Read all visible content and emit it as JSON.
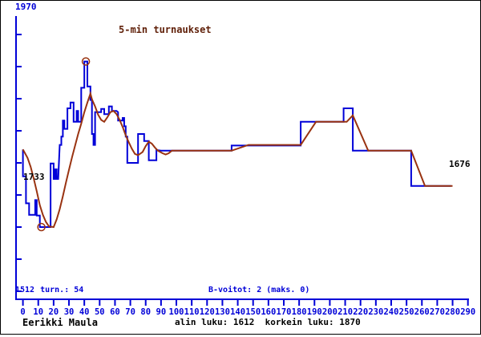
{
  "window": {
    "background": "#ffffff",
    "border_color": "#000000"
  },
  "colors": {
    "blue": "#0000d8",
    "brown": "#993311",
    "title": "#5f1f08",
    "black": "#000000"
  },
  "labels": {
    "y_max": "1970",
    "y_min": "1512",
    "title": "5-min turnaukset",
    "start_rating": "1733",
    "end_rating": "1676",
    "tournaments": "turn.: 54",
    "b_wins": "B-voitot: 2 (maks. 0)",
    "player": "Eerikki Maula",
    "footer_stats": "alin luku: 1612  korkein luku: 1870"
  },
  "chart_data": {
    "type": "line",
    "title": "5-min turnaukset",
    "grid": false,
    "legend": "none",
    "x_axis": {
      "min": 0,
      "max": 290,
      "tick_step": 10,
      "ticks": [
        0,
        10,
        20,
        30,
        40,
        50,
        60,
        70,
        80,
        90,
        100,
        110,
        120,
        130,
        140,
        150,
        160,
        170,
        180,
        190,
        200,
        210,
        220,
        230,
        240,
        250,
        260,
        270,
        280,
        290
      ]
    },
    "y_axis": {
      "min": 1512,
      "max": 1970,
      "tick_step": 50,
      "tick_values": [
        1512,
        1562,
        1612,
        1662,
        1712,
        1762,
        1812,
        1862,
        1912
      ],
      "top_label": "1970",
      "bottom_label": "1512"
    },
    "stats": {
      "start": 1733,
      "end": 1676,
      "lowest": 1612,
      "highest": 1870,
      "tournaments": 54,
      "b_wins": 2,
      "b_wins_max": 0
    },
    "markers": [
      {
        "label": "lowest",
        "t": 12,
        "rating": 1612
      },
      {
        "label": "highest",
        "t": 41,
        "rating": 1870
      }
    ],
    "series": [
      {
        "name": "rating",
        "color_key": "blue",
        "points": [
          [
            0,
            1733
          ],
          [
            0,
            1691
          ],
          [
            2,
            1691
          ],
          [
            2,
            1649
          ],
          [
            4,
            1649
          ],
          [
            4,
            1631
          ],
          [
            8,
            1631
          ],
          [
            8,
            1654
          ],
          [
            9,
            1654
          ],
          [
            9,
            1630
          ],
          [
            11,
            1630
          ],
          [
            11,
            1612
          ],
          [
            18,
            1612
          ],
          [
            18,
            1711
          ],
          [
            20,
            1711
          ],
          [
            20,
            1687
          ],
          [
            21,
            1687
          ],
          [
            21,
            1702
          ],
          [
            22,
            1702
          ],
          [
            22,
            1687
          ],
          [
            23,
            1687
          ],
          [
            24,
            1740
          ],
          [
            25,
            1740
          ],
          [
            25,
            1753
          ],
          [
            26,
            1753
          ],
          [
            26,
            1778
          ],
          [
            27,
            1778
          ],
          [
            27,
            1765
          ],
          [
            29,
            1765
          ],
          [
            29,
            1797
          ],
          [
            31,
            1797
          ],
          [
            31,
            1806
          ],
          [
            33,
            1806
          ],
          [
            33,
            1776
          ],
          [
            35,
            1776
          ],
          [
            35,
            1793
          ],
          [
            36,
            1793
          ],
          [
            36,
            1776
          ],
          [
            38,
            1776
          ],
          [
            38,
            1829
          ],
          [
            40,
            1829
          ],
          [
            40,
            1870
          ],
          [
            42,
            1870
          ],
          [
            42,
            1831
          ],
          [
            44,
            1831
          ],
          [
            44,
            1810
          ],
          [
            45,
            1810
          ],
          [
            45,
            1757
          ],
          [
            46,
            1757
          ],
          [
            46,
            1740
          ],
          [
            47,
            1740
          ],
          [
            47,
            1791
          ],
          [
            48,
            1791
          ],
          [
            51,
            1791
          ],
          [
            51,
            1796
          ],
          [
            53,
            1796
          ],
          [
            53,
            1788
          ],
          [
            56,
            1788
          ],
          [
            56,
            1800
          ],
          [
            58,
            1800
          ],
          [
            58,
            1793
          ],
          [
            61,
            1793
          ],
          [
            62,
            1791
          ],
          [
            62,
            1778
          ],
          [
            64,
            1778
          ],
          [
            65,
            1778
          ],
          [
            65,
            1782
          ],
          [
            66,
            1782
          ],
          [
            66,
            1769
          ],
          [
            67,
            1769
          ],
          [
            67,
            1753
          ],
          [
            68,
            1753
          ],
          [
            68,
            1712
          ],
          [
            75,
            1712
          ],
          [
            75,
            1757
          ],
          [
            79,
            1757
          ],
          [
            79,
            1746
          ],
          [
            82,
            1746
          ],
          [
            82,
            1716
          ],
          [
            87,
            1716
          ],
          [
            87,
            1732
          ],
          [
            90,
            1731
          ],
          [
            135,
            1731
          ],
          [
            136,
            1731
          ],
          [
            136,
            1739
          ],
          [
            181,
            1739
          ],
          [
            181,
            1776
          ],
          [
            209,
            1776
          ],
          [
            209,
            1797
          ],
          [
            215,
            1797
          ],
          [
            215,
            1731
          ],
          [
            253,
            1731
          ],
          [
            253,
            1676
          ],
          [
            279,
            1676
          ]
        ]
      },
      {
        "name": "smoothed-average",
        "color_key": "brown",
        "points": [
          [
            0,
            1733
          ],
          [
            3,
            1720
          ],
          [
            5,
            1706
          ],
          [
            7,
            1688
          ],
          [
            9,
            1668
          ],
          [
            11,
            1646
          ],
          [
            13,
            1631
          ],
          [
            15,
            1620
          ],
          [
            17,
            1613
          ],
          [
            20,
            1612
          ],
          [
            22,
            1624
          ],
          [
            24,
            1640
          ],
          [
            26,
            1660
          ],
          [
            28,
            1681
          ],
          [
            30,
            1701
          ],
          [
            32,
            1721
          ],
          [
            34,
            1739
          ],
          [
            36,
            1757
          ],
          [
            38,
            1773
          ],
          [
            40,
            1791
          ],
          [
            42,
            1806
          ],
          [
            44,
            1820
          ],
          [
            45,
            1811
          ],
          [
            47,
            1800
          ],
          [
            49,
            1787
          ],
          [
            51,
            1779
          ],
          [
            53,
            1776
          ],
          [
            55,
            1783
          ],
          [
            57,
            1791
          ],
          [
            59,
            1793
          ],
          [
            61,
            1788
          ],
          [
            63,
            1779
          ],
          [
            65,
            1768
          ],
          [
            67,
            1755
          ],
          [
            69,
            1744
          ],
          [
            71,
            1734
          ],
          [
            73,
            1726
          ],
          [
            75,
            1724
          ],
          [
            78,
            1729
          ],
          [
            80,
            1738
          ],
          [
            82,
            1745
          ],
          [
            84,
            1742
          ],
          [
            86,
            1736
          ],
          [
            88,
            1731
          ],
          [
            91,
            1727
          ],
          [
            93,
            1725
          ],
          [
            95,
            1727
          ],
          [
            97,
            1731
          ],
          [
            136,
            1731
          ],
          [
            147,
            1740
          ],
          [
            181,
            1740
          ],
          [
            191,
            1776
          ],
          [
            211,
            1776
          ],
          [
            215,
            1786
          ],
          [
            225,
            1731
          ],
          [
            253,
            1731
          ],
          [
            262,
            1676
          ],
          [
            280,
            1676
          ]
        ]
      }
    ]
  }
}
